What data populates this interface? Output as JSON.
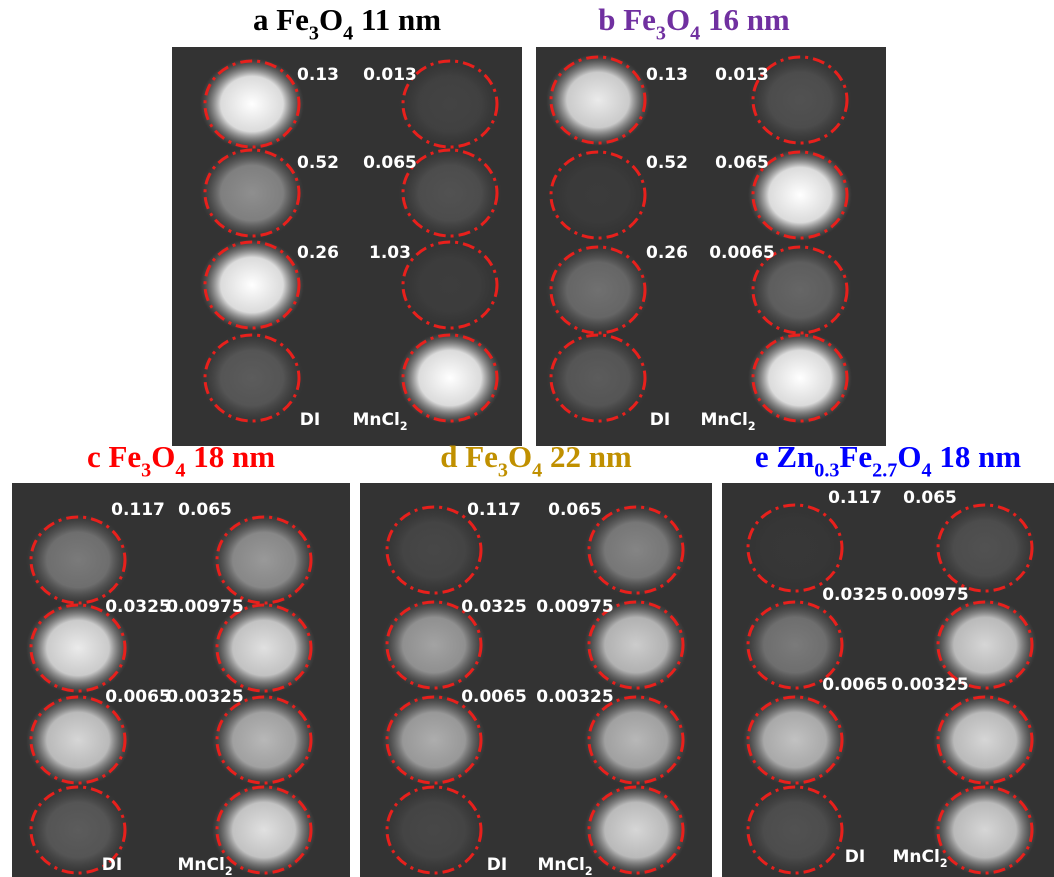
{
  "panels": [
    {
      "title": [
        {
          "text": "a Fe"
        },
        {
          "text": "3",
          "sub": true
        },
        {
          "text": "O"
        },
        {
          "text": "4",
          "sub": true
        },
        {
          "text": " 11 nm"
        }
      ],
      "title_color": "#000000",
      "concentrations": [
        [
          "0.13",
          "0.013"
        ],
        [
          "0.52",
          "0.065"
        ],
        [
          "0.26",
          "1.03"
        ]
      ],
      "footer": {
        "left": "DI",
        "right": [
          {
            "text": "MnCl"
          },
          {
            "text": "2",
            "sub": true
          }
        ]
      }
    },
    {
      "title": [
        {
          "text": "b Fe"
        },
        {
          "text": "3",
          "sub": true
        },
        {
          "text": "O"
        },
        {
          "text": "4",
          "sub": true
        },
        {
          "text": " 16 nm"
        }
      ],
      "title_color": "#7030a0",
      "concentrations": [
        [
          "0.13",
          "0.013"
        ],
        [
          "0.52",
          "0.065"
        ],
        [
          "0.26",
          "0.0065"
        ]
      ],
      "footer": {
        "left": "DI",
        "right": [
          {
            "text": "MnCl"
          },
          {
            "text": "2",
            "sub": true
          }
        ]
      }
    },
    {
      "title": [
        {
          "text": "c Fe"
        },
        {
          "text": "3",
          "sub": true
        },
        {
          "text": "O"
        },
        {
          "text": "4",
          "sub": true
        },
        {
          "text": " 18 nm"
        }
      ],
      "title_color": "#ff0000",
      "concentrations": [
        [
          "0.117",
          "0.065"
        ],
        [
          "0.0325",
          "0.00975"
        ],
        [
          "0.0065",
          "0.00325"
        ]
      ],
      "footer": {
        "left": "DI",
        "right": [
          {
            "text": "MnCl"
          },
          {
            "text": "2",
            "sub": true
          }
        ]
      }
    },
    {
      "title": [
        {
          "text": "d Fe"
        },
        {
          "text": "3",
          "sub": true
        },
        {
          "text": "O"
        },
        {
          "text": "4",
          "sub": true
        },
        {
          "text": " 22 nm"
        }
      ],
      "title_color": "#c09000",
      "concentrations": [
        [
          "0.117",
          "0.065"
        ],
        [
          "0.0325",
          "0.00975"
        ],
        [
          "0.0065",
          "0.00325"
        ]
      ],
      "footer": {
        "left": "DI",
        "right": [
          {
            "text": "MnCl"
          },
          {
            "text": "2",
            "sub": true
          }
        ]
      }
    },
    {
      "title": [
        {
          "text": "e Zn"
        },
        {
          "text": "0.3",
          "sub": true
        },
        {
          "text": "Fe"
        },
        {
          "text": "2.7",
          "sub": true
        },
        {
          "text": "O"
        },
        {
          "text": "4",
          "sub": true
        },
        {
          "text": " 18 nm"
        }
      ],
      "title_color": "#0000ff",
      "concentrations": [
        [
          "0.117",
          "0.065"
        ],
        [
          "0.0325",
          "0.00975"
        ],
        [
          "0.0065",
          "0.00325"
        ]
      ],
      "footer": {
        "left": "DI",
        "right": [
          {
            "text": "MnCl"
          },
          {
            "text": "2",
            "sub": true
          }
        ]
      }
    }
  ]
}
